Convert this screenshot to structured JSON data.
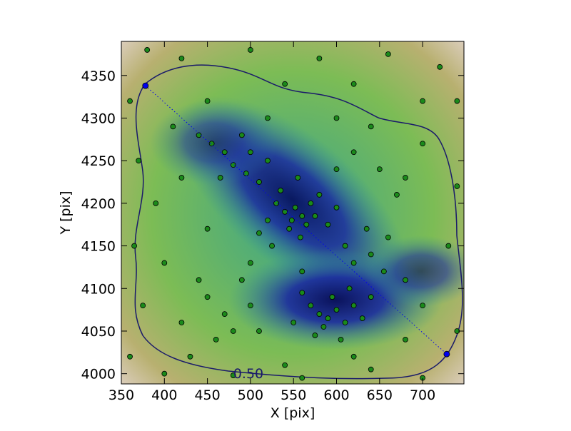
{
  "chart_data": {
    "type": "scatter",
    "xlabel": "X [pix]",
    "ylabel": "Y [pix]",
    "xlim": [
      350,
      748
    ],
    "ylim": [
      3988,
      4390
    ],
    "xticks": [
      350,
      400,
      450,
      500,
      550,
      600,
      650,
      700
    ],
    "yticks": [
      4000,
      4050,
      4100,
      4150,
      4200,
      4250,
      4300,
      4350
    ],
    "color": "#1a8a1a",
    "x": [
      540,
      548,
      552,
      560,
      565,
      545,
      530,
      570,
      558,
      575,
      520,
      535,
      580,
      555,
      510,
      590,
      600,
      525,
      580,
      590,
      600,
      570,
      610,
      585,
      620,
      560,
      595,
      630,
      575,
      605,
      550,
      640,
      615,
      470,
      480,
      495,
      455,
      500,
      510,
      465,
      440,
      520,
      490,
      620,
      640,
      610,
      655,
      680,
      660,
      635,
      620,
      650,
      600,
      680,
      700,
      640,
      600,
      670,
      450,
      470,
      480,
      440,
      500,
      460,
      420,
      490,
      510,
      430,
      380,
      420,
      500,
      580,
      660,
      720,
      740,
      360,
      370,
      365,
      375,
      360,
      400,
      480,
      560,
      640,
      700,
      740,
      730,
      740,
      390,
      400,
      410,
      540,
      620,
      700,
      450,
      520,
      560,
      500,
      450,
      420,
      680,
      700,
      540,
      620
    ],
    "values": [
      4190,
      4180,
      4195,
      4185,
      4175,
      4170,
      4200,
      4200,
      4160,
      4185,
      4180,
      4215,
      4210,
      4230,
      4165,
      4175,
      4195,
      4150,
      4070,
      4065,
      4075,
      4080,
      4060,
      4055,
      4080,
      4095,
      4090,
      4065,
      4045,
      4040,
      4060,
      4090,
      4100,
      4260,
      4245,
      4235,
      4270,
      4260,
      4225,
      4230,
      4280,
      4250,
      4280,
      4130,
      4140,
      4150,
      4120,
      4110,
      4160,
      4170,
      4260,
      4240,
      4240,
      4230,
      4270,
      4290,
      4300,
      4210,
      4090,
      4070,
      4050,
      4110,
      4080,
      4040,
      4060,
      4110,
      4050,
      4020,
      4380,
      4370,
      4380,
      4370,
      4375,
      4360,
      4320,
      4320,
      4250,
      4150,
      4080,
      4020,
      4000,
      3998,
      3995,
      4005,
      3995,
      4050,
      4150,
      4220,
      4200,
      4130,
      4290,
      4340,
      4340,
      4320,
      4320,
      4300,
      4120,
      4130,
      4170,
      4230,
      4040,
      4080,
      4010,
      4020
    ],
    "segment": {
      "color": "#0000ee",
      "x": [
        378,
        728
      ],
      "values": [
        4338,
        4023
      ]
    },
    "contour_label": "0.50"
  }
}
